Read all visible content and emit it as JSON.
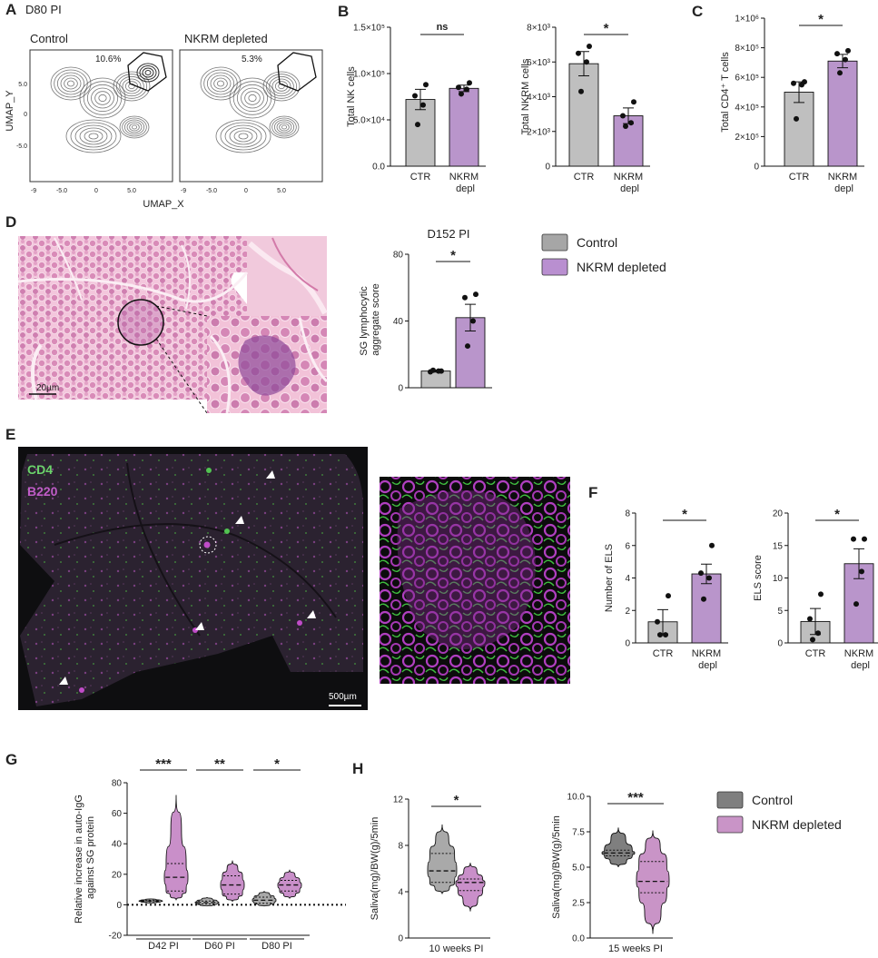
{
  "panel_labels": [
    "A",
    "B",
    "C",
    "D",
    "E",
    "F",
    "G",
    "H"
  ],
  "umap": {
    "title": "D80 PI",
    "xlabel": "UMAP_X",
    "ylabel": "UMAP_Y",
    "xticks": [
      "-9",
      "-5.0",
      "0",
      "5.0"
    ],
    "yticks": [
      "5.0",
      "0",
      "-5.0"
    ],
    "plots": [
      {
        "title": "Control",
        "percent": "10.6%"
      },
      {
        "title": "NKRM depleted",
        "percent": "5.3%"
      }
    ]
  },
  "histology": {
    "scale": "20µm"
  },
  "fluorescence": {
    "channels": [
      "CD4",
      "B220"
    ],
    "scale": "500µm"
  },
  "legends": [
    {
      "entries": [
        {
          "name": "Control",
          "color": "#a6a6a6"
        },
        {
          "name": "NKRM depleted",
          "color": "#b98fd0"
        }
      ]
    },
    {
      "entries": [
        {
          "name": "Control",
          "color": "#7f7f7f"
        },
        {
          "name": "NKRM depleted",
          "color": "#c994c7"
        }
      ]
    }
  ],
  "chart_data": [
    {
      "type": "bar",
      "ylabel": "Total NK cells",
      "categories": [
        "CTR",
        "NKRM depl"
      ],
      "values": [
        72000,
        84000
      ],
      "errors": [
        11000,
        3500
      ],
      "points": [
        [
          88000,
          76000,
          66000,
          45000
        ],
        [
          90000,
          85000,
          83000,
          78000
        ]
      ],
      "colors": [
        "#bfbfbf",
        "#b995cb"
      ],
      "ylim": [
        0,
        150000
      ],
      "yticks": [
        {
          "value": 0,
          "label": "0.0"
        },
        {
          "value": 50000,
          "label": "5.0×10⁴"
        },
        {
          "value": 100000,
          "label": "1.0×10⁵"
        },
        {
          "value": 150000,
          "label": "1.5×10⁵"
        }
      ],
      "significance": [
        "ns"
      ]
    },
    {
      "type": "bar",
      "ylabel": "Total NKRM cells",
      "categories": [
        "CTR",
        "NKRM depl"
      ],
      "values": [
        5900,
        2900
      ],
      "errors": [
        700,
        450
      ],
      "points": [
        [
          6900,
          6500,
          6000,
          4300
        ],
        [
          3700,
          2900,
          2500,
          2300
        ]
      ],
      "colors": [
        "#bfbfbf",
        "#b995cb"
      ],
      "ylim": [
        0,
        8000
      ],
      "yticks": [
        0,
        {
          "value": 2000,
          "label": "2×10³"
        },
        {
          "value": 4000,
          "label": "4×10³"
        },
        {
          "value": 6000,
          "label": "6×10³"
        },
        {
          "value": 8000,
          "label": "8×10³"
        }
      ],
      "significance": [
        "*"
      ]
    },
    {
      "type": "bar",
      "ylabel": "Total CD4⁺ T cells",
      "categories": [
        "CTR",
        "NKRM depl"
      ],
      "values": [
        500000,
        710000
      ],
      "errors": [
        70000,
        45000
      ],
      "points": [
        [
          570000,
          560000,
          550000,
          320000
        ],
        [
          780000,
          760000,
          720000,
          630000
        ]
      ],
      "colors": [
        "#bfbfbf",
        "#b995cb"
      ],
      "ylim": [
        0,
        1000000
      ],
      "yticks": [
        0,
        {
          "value": 200000,
          "label": "2×10⁵"
        },
        {
          "value": 400000,
          "label": "4×10⁵"
        },
        {
          "value": 600000,
          "label": "6×10⁵"
        },
        {
          "value": 800000,
          "label": "8×10⁵"
        },
        {
          "value": 1000000,
          "label": "1×10⁶"
        }
      ],
      "significance": [
        "*"
      ]
    },
    {
      "type": "bar",
      "title": "D152 PI",
      "ylabel": "SG lymphocytic aggregate score",
      "categories": [
        null,
        null
      ],
      "values": [
        10,
        42
      ],
      "errors": [
        0.6,
        8
      ],
      "points": [
        [
          10,
          9.5,
          10,
          10.5
        ],
        [
          56,
          54,
          40,
          25
        ]
      ],
      "colors": [
        "#bfbfbf",
        "#b995cb"
      ],
      "ylim": [
        0,
        80
      ],
      "yticks": [
        0,
        40,
        80
      ],
      "significance": [
        "*"
      ]
    },
    {
      "type": "bar",
      "ylabel": "Number of ELS",
      "categories": [
        "CTR",
        "NKRM depl"
      ],
      "values": [
        1.3,
        4.25
      ],
      "errors": [
        0.75,
        0.6
      ],
      "points": [
        [
          2.9,
          1.3,
          0.5,
          0.5
        ],
        [
          6.0,
          4.3,
          4.0,
          2.7
        ]
      ],
      "colors": [
        "#bfbfbf",
        "#b995cb"
      ],
      "ylim": [
        0,
        8
      ],
      "yticks": [
        0,
        2,
        4,
        6,
        8
      ],
      "significance": [
        "*"
      ]
    },
    {
      "type": "bar",
      "ylabel": "ELS score",
      "categories": [
        "CTR",
        "NKRM depl"
      ],
      "values": [
        3.3,
        12.2
      ],
      "errors": [
        2,
        2.3
      ],
      "points": [
        [
          7.5,
          3.7,
          1.5,
          0.5
        ],
        [
          16,
          16,
          11,
          6
        ]
      ],
      "colors": [
        "#bfbfbf",
        "#b995cb"
      ],
      "ylim": [
        0,
        20
      ],
      "yticks": [
        0,
        5,
        10,
        15,
        20
      ],
      "significance": [
        "*"
      ]
    },
    {
      "type": "violin",
      "ylabel": "Relative increase in auto-IgG against SG protein",
      "categories": [
        "D42 PI",
        "D60 PI",
        "D80 PI"
      ],
      "ylim": [
        -20,
        80
      ],
      "yticks": [
        -20,
        0,
        20,
        40,
        60,
        80
      ],
      "series": [
        {
          "color": "#a9a9a9",
          "values": [
            {
              "min": 1,
              "q1": 2,
              "median": 2.5,
              "q3": 3,
              "max": 4
            },
            {
              "min": -1,
              "q1": 0.5,
              "median": 1.5,
              "q3": 2.5,
              "max": 5
            },
            {
              "min": -1,
              "q1": 1,
              "median": 3,
              "q3": 5,
              "max": 9
            }
          ]
        },
        {
          "color": "#c98fc9",
          "values": [
            {
              "min": 3,
              "q1": 9,
              "median": 18,
              "q3": 27,
              "max": 72
            },
            {
              "min": 2,
              "q1": 7,
              "median": 13,
              "q3": 19,
              "max": 29
            },
            {
              "min": 4,
              "q1": 9,
              "median": 13,
              "q3": 16,
              "max": 23
            }
          ]
        }
      ],
      "significance": [
        "***",
        "**",
        "*"
      ]
    },
    {
      "type": "violin",
      "ylabel": "Saliva(mg)/BW(g)/5min",
      "xlabel": "10 weeks PI",
      "categories": [
        null
      ],
      "ylim": [
        0,
        12
      ],
      "yticks": [
        0,
        4,
        8,
        12
      ],
      "series": [
        {
          "color": "#a9a9a9",
          "values": [
            {
              "min": 3.8,
              "q1": 4.8,
              "median": 5.8,
              "q3": 7.3,
              "max": 9.8
            }
          ]
        },
        {
          "color": "#c98fc9",
          "values": [
            {
              "min": 2.3,
              "q1": 4.1,
              "median": 4.8,
              "q3": 5.1,
              "max": 6.5
            }
          ]
        }
      ],
      "significance": [
        "*"
      ]
    },
    {
      "type": "violin",
      "ylabel": "Saliva(mg)/BW(g)/5min",
      "xlabel": "15 weeks PI",
      "categories": [
        null
      ],
      "ylim": [
        0,
        10
      ],
      "yticks": [
        {
          "value": 0,
          "label": "0.0"
        },
        2.5,
        {
          "value": 5,
          "label": "5.0"
        },
        7.5,
        {
          "value": 10,
          "label": "10.0"
        }
      ],
      "series": [
        {
          "color": "#7f7f7f",
          "values": [
            {
              "min": 5.0,
              "q1": 5.8,
              "median": 6.0,
              "q3": 6.2,
              "max": 7.8
            }
          ]
        },
        {
          "color": "#c994c7",
          "values": [
            {
              "min": 0.3,
              "q1": 3.2,
              "median": 4.0,
              "q3": 5.4,
              "max": 7.6
            }
          ]
        }
      ],
      "significance": [
        "***"
      ]
    }
  ]
}
